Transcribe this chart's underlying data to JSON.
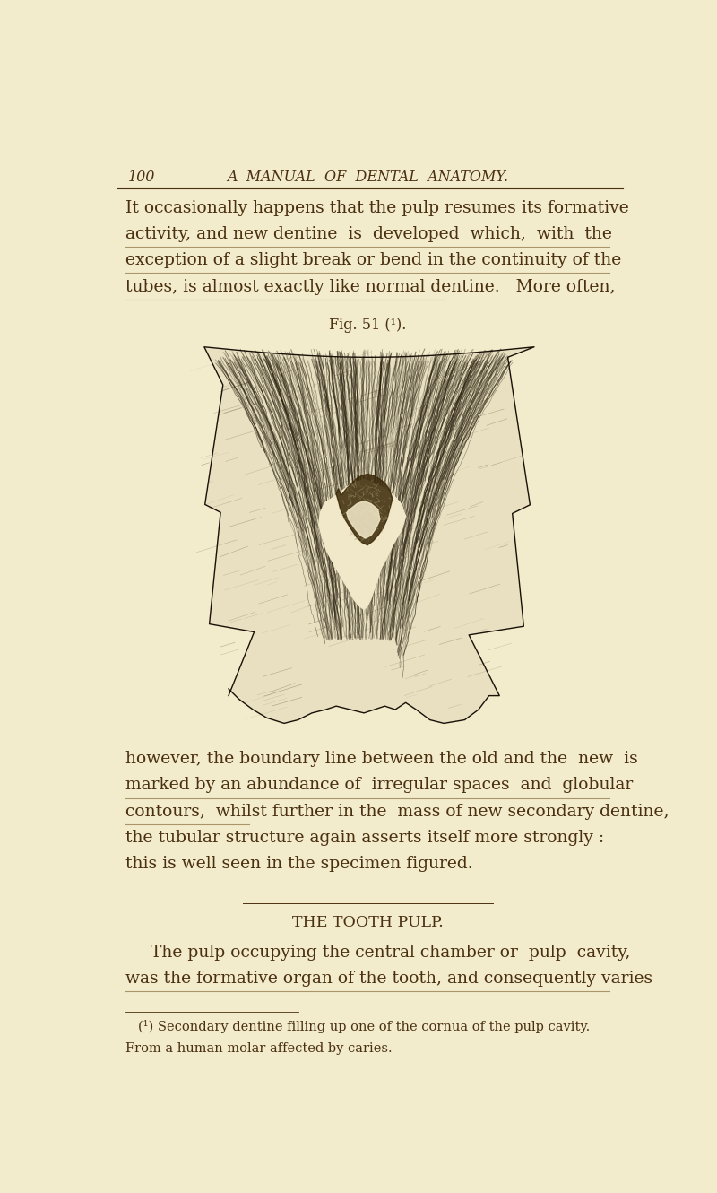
{
  "bg_color": "#f2eccc",
  "text_color": "#4a3010",
  "dark_text": "#2a1a08",
  "header_number": "100",
  "header_title": "A  MANUAL  OF  DENTAL  ANATOMY.",
  "para1_lines": [
    "It occasionally happens that the pulp resumes its formative",
    "activity, and new dentine  is  developed  which,  with  the",
    "exception of a slight break or bend in the continuity of the",
    "tubes, is almost exactly like normal dentine.   More often,"
  ],
  "fig_caption": "Fig. 51 (¹).",
  "para2_lines": [
    "however, the boundary line between the old and the  new  is",
    "marked by an abundance of  irregular spaces  and  globular",
    "contours,  whilst further in the  mass of new secondary dentine,",
    "the tubular structure again asserts itself more strongly :",
    "this is well seen in the specimen figured."
  ],
  "section_title": "THE TOOTH PULP.",
  "para3_lines": [
    "The pulp occupying the central chamber or  pulp  cavity,",
    "was the formative organ of the tooth, and consequently varies"
  ],
  "footnote_line1": "(¹) Secondary dentine filling up one of the cornua of the pulp cavity.",
  "footnote_line2": "From a human molar affected by caries.",
  "font_size_header": 11.5,
  "font_size_body": 13.5,
  "font_size_caption": 11.5,
  "font_size_section": 12.5,
  "font_size_footnote": 10.5
}
